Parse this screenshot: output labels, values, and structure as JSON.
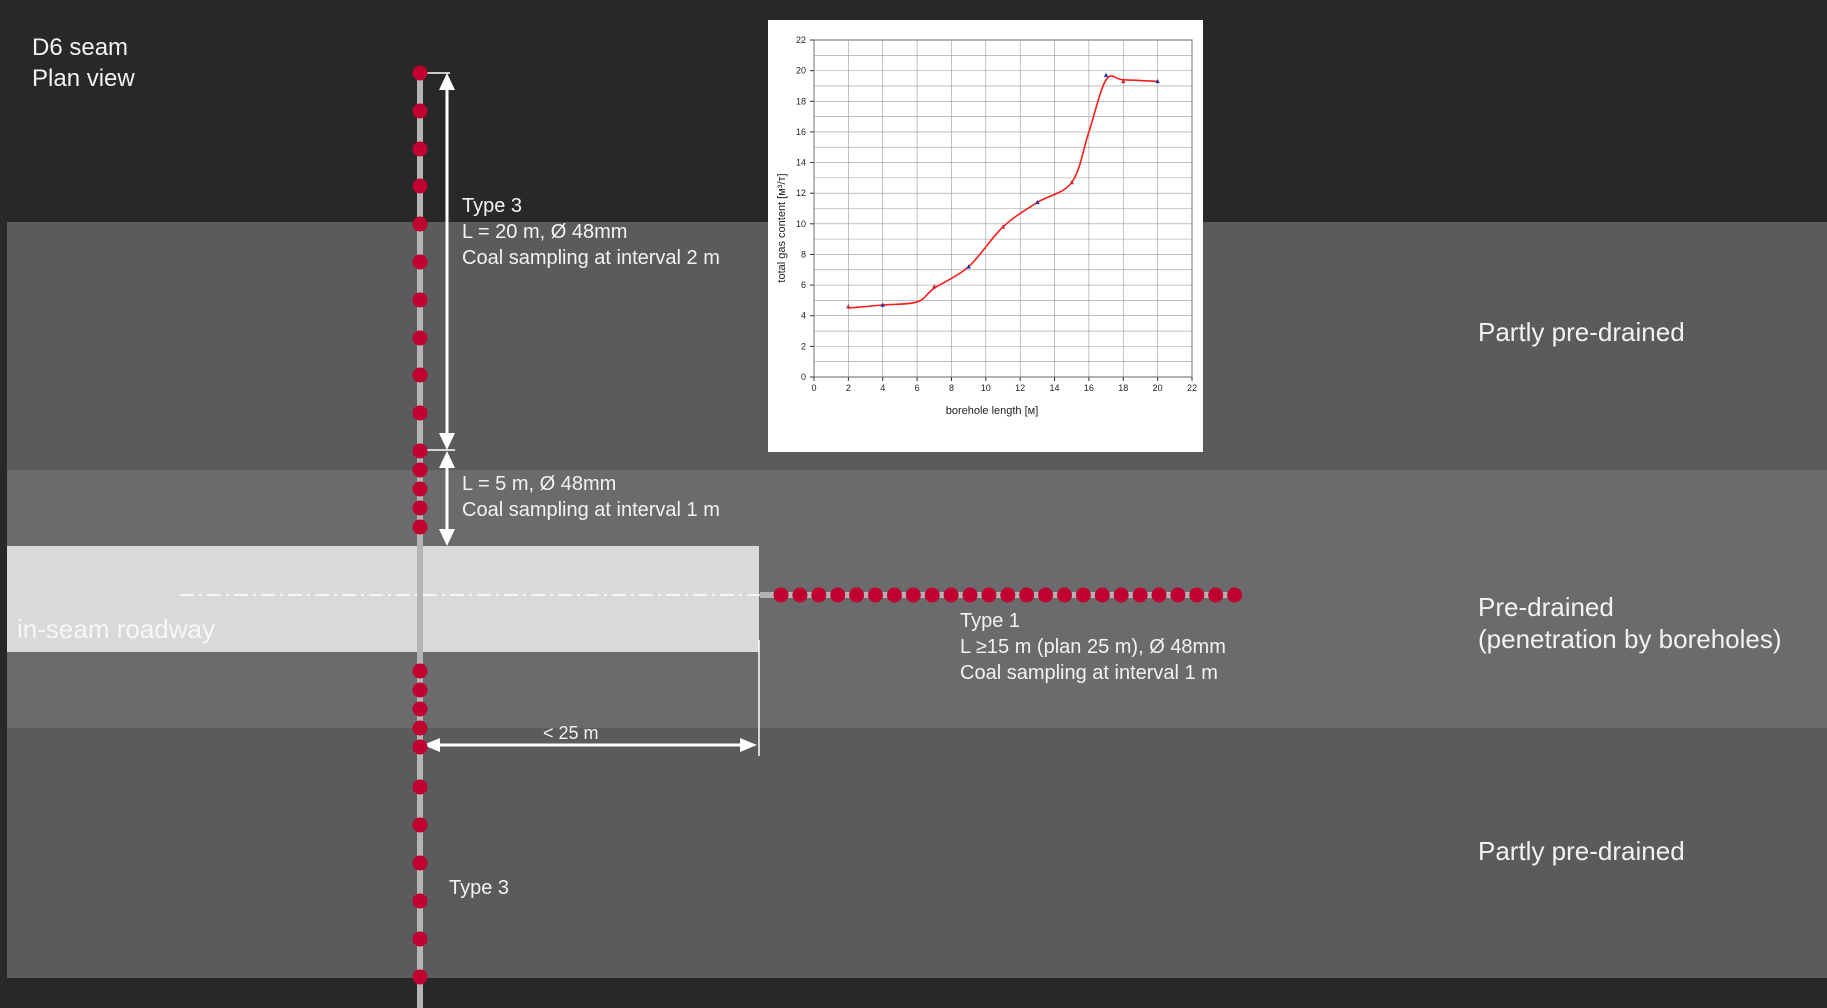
{
  "heading": {
    "line1": "D6 seam",
    "line2": "Plan view"
  },
  "roadway": {
    "label": "in-seam roadway"
  },
  "zones": {
    "upper": "Partly pre-drained",
    "middle_line1": "Pre-drained",
    "middle_line2": "(penetration by boreholes)",
    "lower": "Partly pre-drained"
  },
  "borehole_type3_upper": {
    "title": "Type 3",
    "spec": "L = 20 m, Ø 48mm",
    "sampling": "Coal sampling at interval 2 m"
  },
  "borehole_short": {
    "spec": "L = 5 m, Ø 48mm",
    "sampling": "Coal sampling at interval 1 m"
  },
  "borehole_type1": {
    "title": "Type 1",
    "spec": "L ≥15 m (plan 25 m), Ø 48mm",
    "sampling": "Coal sampling at interval 1 m"
  },
  "distance": {
    "label": "< 25 m"
  },
  "borehole_type3_lower": {
    "title": "Type 3"
  },
  "colors": {
    "dark_band": "#282828",
    "mid_band": "#5b5b5d",
    "light_band": "#6b6b6e",
    "roadway": "#d9d9db",
    "sample_dot": "#c0002f",
    "curve": "#ff1a1a"
  },
  "chart_data": {
    "type": "line",
    "title": "",
    "xlabel": "borehole length [м]",
    "ylabel": "total gas content [м³/т]",
    "xlim": [
      0,
      22
    ],
    "ylim": [
      0,
      22
    ],
    "xticks": [
      0,
      2,
      4,
      6,
      8,
      10,
      12,
      14,
      16,
      18,
      20,
      22
    ],
    "yticks": [
      0,
      2,
      4,
      6,
      8,
      10,
      12,
      14,
      16,
      18,
      20,
      22
    ],
    "grid": true,
    "x": [
      2,
      4,
      6,
      7,
      9,
      11,
      13,
      15,
      16,
      17,
      18,
      20
    ],
    "y": [
      4.5,
      4.7,
      4.9,
      5.8,
      7.2,
      9.8,
      11.4,
      12.7,
      16.0,
      19.4,
      19.4,
      19.3
    ],
    "markers": [
      {
        "x": 2,
        "y": 4.6
      },
      {
        "x": 4,
        "y": 4.7
      },
      {
        "x": 7,
        "y": 5.9
      },
      {
        "x": 9,
        "y": 7.2
      },
      {
        "x": 11,
        "y": 9.8
      },
      {
        "x": 13,
        "y": 11.4
      },
      {
        "x": 15,
        "y": 12.7
      },
      {
        "x": 17,
        "y": 19.7
      },
      {
        "x": 18,
        "y": 19.3
      },
      {
        "x": 20,
        "y": 19.3
      }
    ]
  }
}
